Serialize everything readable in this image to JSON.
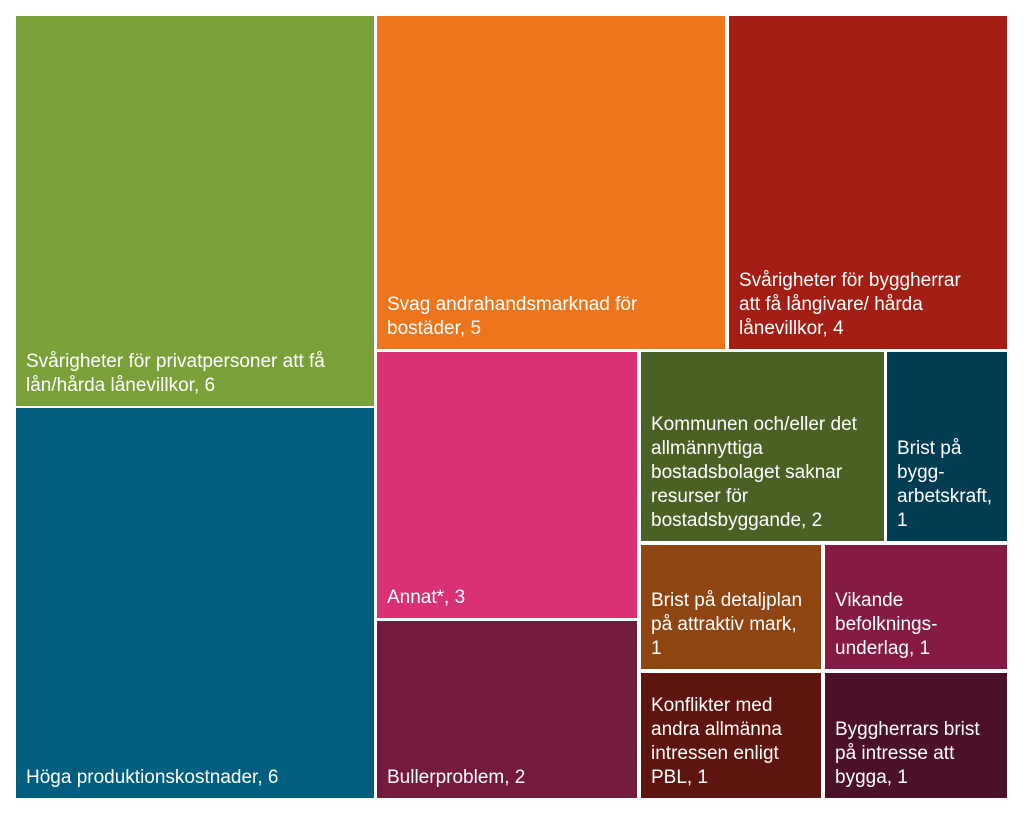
{
  "chart_data": {
    "type": "treemap",
    "title": "",
    "items": [
      {
        "label": "Svårigheter för privatpersoner att få\nlån/hårda lånevillkor, 6",
        "name": "Svårigheter för privatpersoner att få lån/hårda lånevillkor",
        "value": 6,
        "color": "#7aa03a"
      },
      {
        "label": "Höga produktionskostnader, 6",
        "name": "Höga produktionskostnader",
        "value": 6,
        "color": "#005f7f"
      },
      {
        "label": "Svag andrahandsmarknad för\nbostäder, 5",
        "name": "Svag andrahandsmarknad för bostäder",
        "value": 5,
        "color": "#ed761c"
      },
      {
        "label": "Svårigheter för byggherrar\natt få långivare/ hårda\nlånevillkor, 4",
        "name": "Svårigheter för byggherrar att få långivare/ hårda lånevillkor",
        "value": 4,
        "color": "#a31f15"
      },
      {
        "label": "Annat*, 3",
        "name": "Annat*",
        "value": 3,
        "color": "#d93174"
      },
      {
        "label": "Bullerproblem, 2",
        "name": "Bullerproblem",
        "value": 2,
        "color": "#741a3c"
      },
      {
        "label": "Kommunen och/eller det\nallmännyttiga\nbostadsbolaget saknar\nresurser för\nbostadsbyggande, 2",
        "name": "Kommunen och/eller det allmännyttiga bostadsbolaget saknar resurser för bostadsbyggande",
        "value": 2,
        "color": "#4a6125"
      },
      {
        "label": "Brist på\nbygg-\narbetskraft,\n1",
        "name": "Brist på bygg-arbetskraft",
        "value": 1,
        "color": "#003c52"
      },
      {
        "label": "Brist på detaljplan\npå attraktiv mark,\n1",
        "name": "Brist på detaljplan på attraktiv mark",
        "value": 1,
        "color": "#8f4511"
      },
      {
        "label": "Vikande\nbefolknings-\nunderlag, 1",
        "name": "Vikande befolknings-underlag",
        "value": 1,
        "color": "#851a45"
      },
      {
        "label": "Konflikter med\nandra allmänna\nintressen enligt\nPBL, 1",
        "name": "Konflikter med andra allmänna intressen enligt PBL",
        "value": 1,
        "color": "#5e150f"
      },
      {
        "label": "Byggherrars brist\npå intresse att\nbygga, 1",
        "name": "Byggherrars brist på intresse att bygga",
        "value": 1,
        "color": "#4a1128"
      }
    ]
  }
}
